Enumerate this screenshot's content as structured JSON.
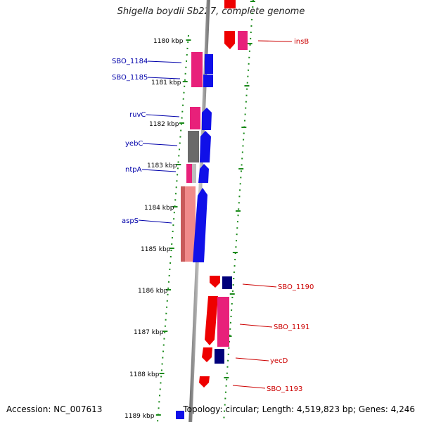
{
  "title": "Shigella boydii Sb227, complete genome",
  "accession": "Accession: NC_007613",
  "summary": "Topology: circular; Length: 4,519,823 bp; Genes: 4,246",
  "colors": {
    "left_label": "#0000aa",
    "right_label": "#cc0000",
    "scale_dots": "#1a8a1a",
    "axis": "#8a8a8a"
  },
  "scale_ticks": [
    "1180 kbp",
    "1181 kbp",
    "1182 kbp",
    "1183 kbp",
    "1184 kbp",
    "1185 kbp",
    "1186 kbp",
    "1187 kbp",
    "1188 kbp",
    "1189 kbp"
  ],
  "left_genes": [
    "SBO_1184",
    "SBO_1185",
    "ruvC",
    "yebC",
    "ntpA",
    "aspS"
  ],
  "right_genes": [
    "insB",
    "SBO_1190",
    "SBO_1191",
    "yecD",
    "SBO_1193"
  ]
}
